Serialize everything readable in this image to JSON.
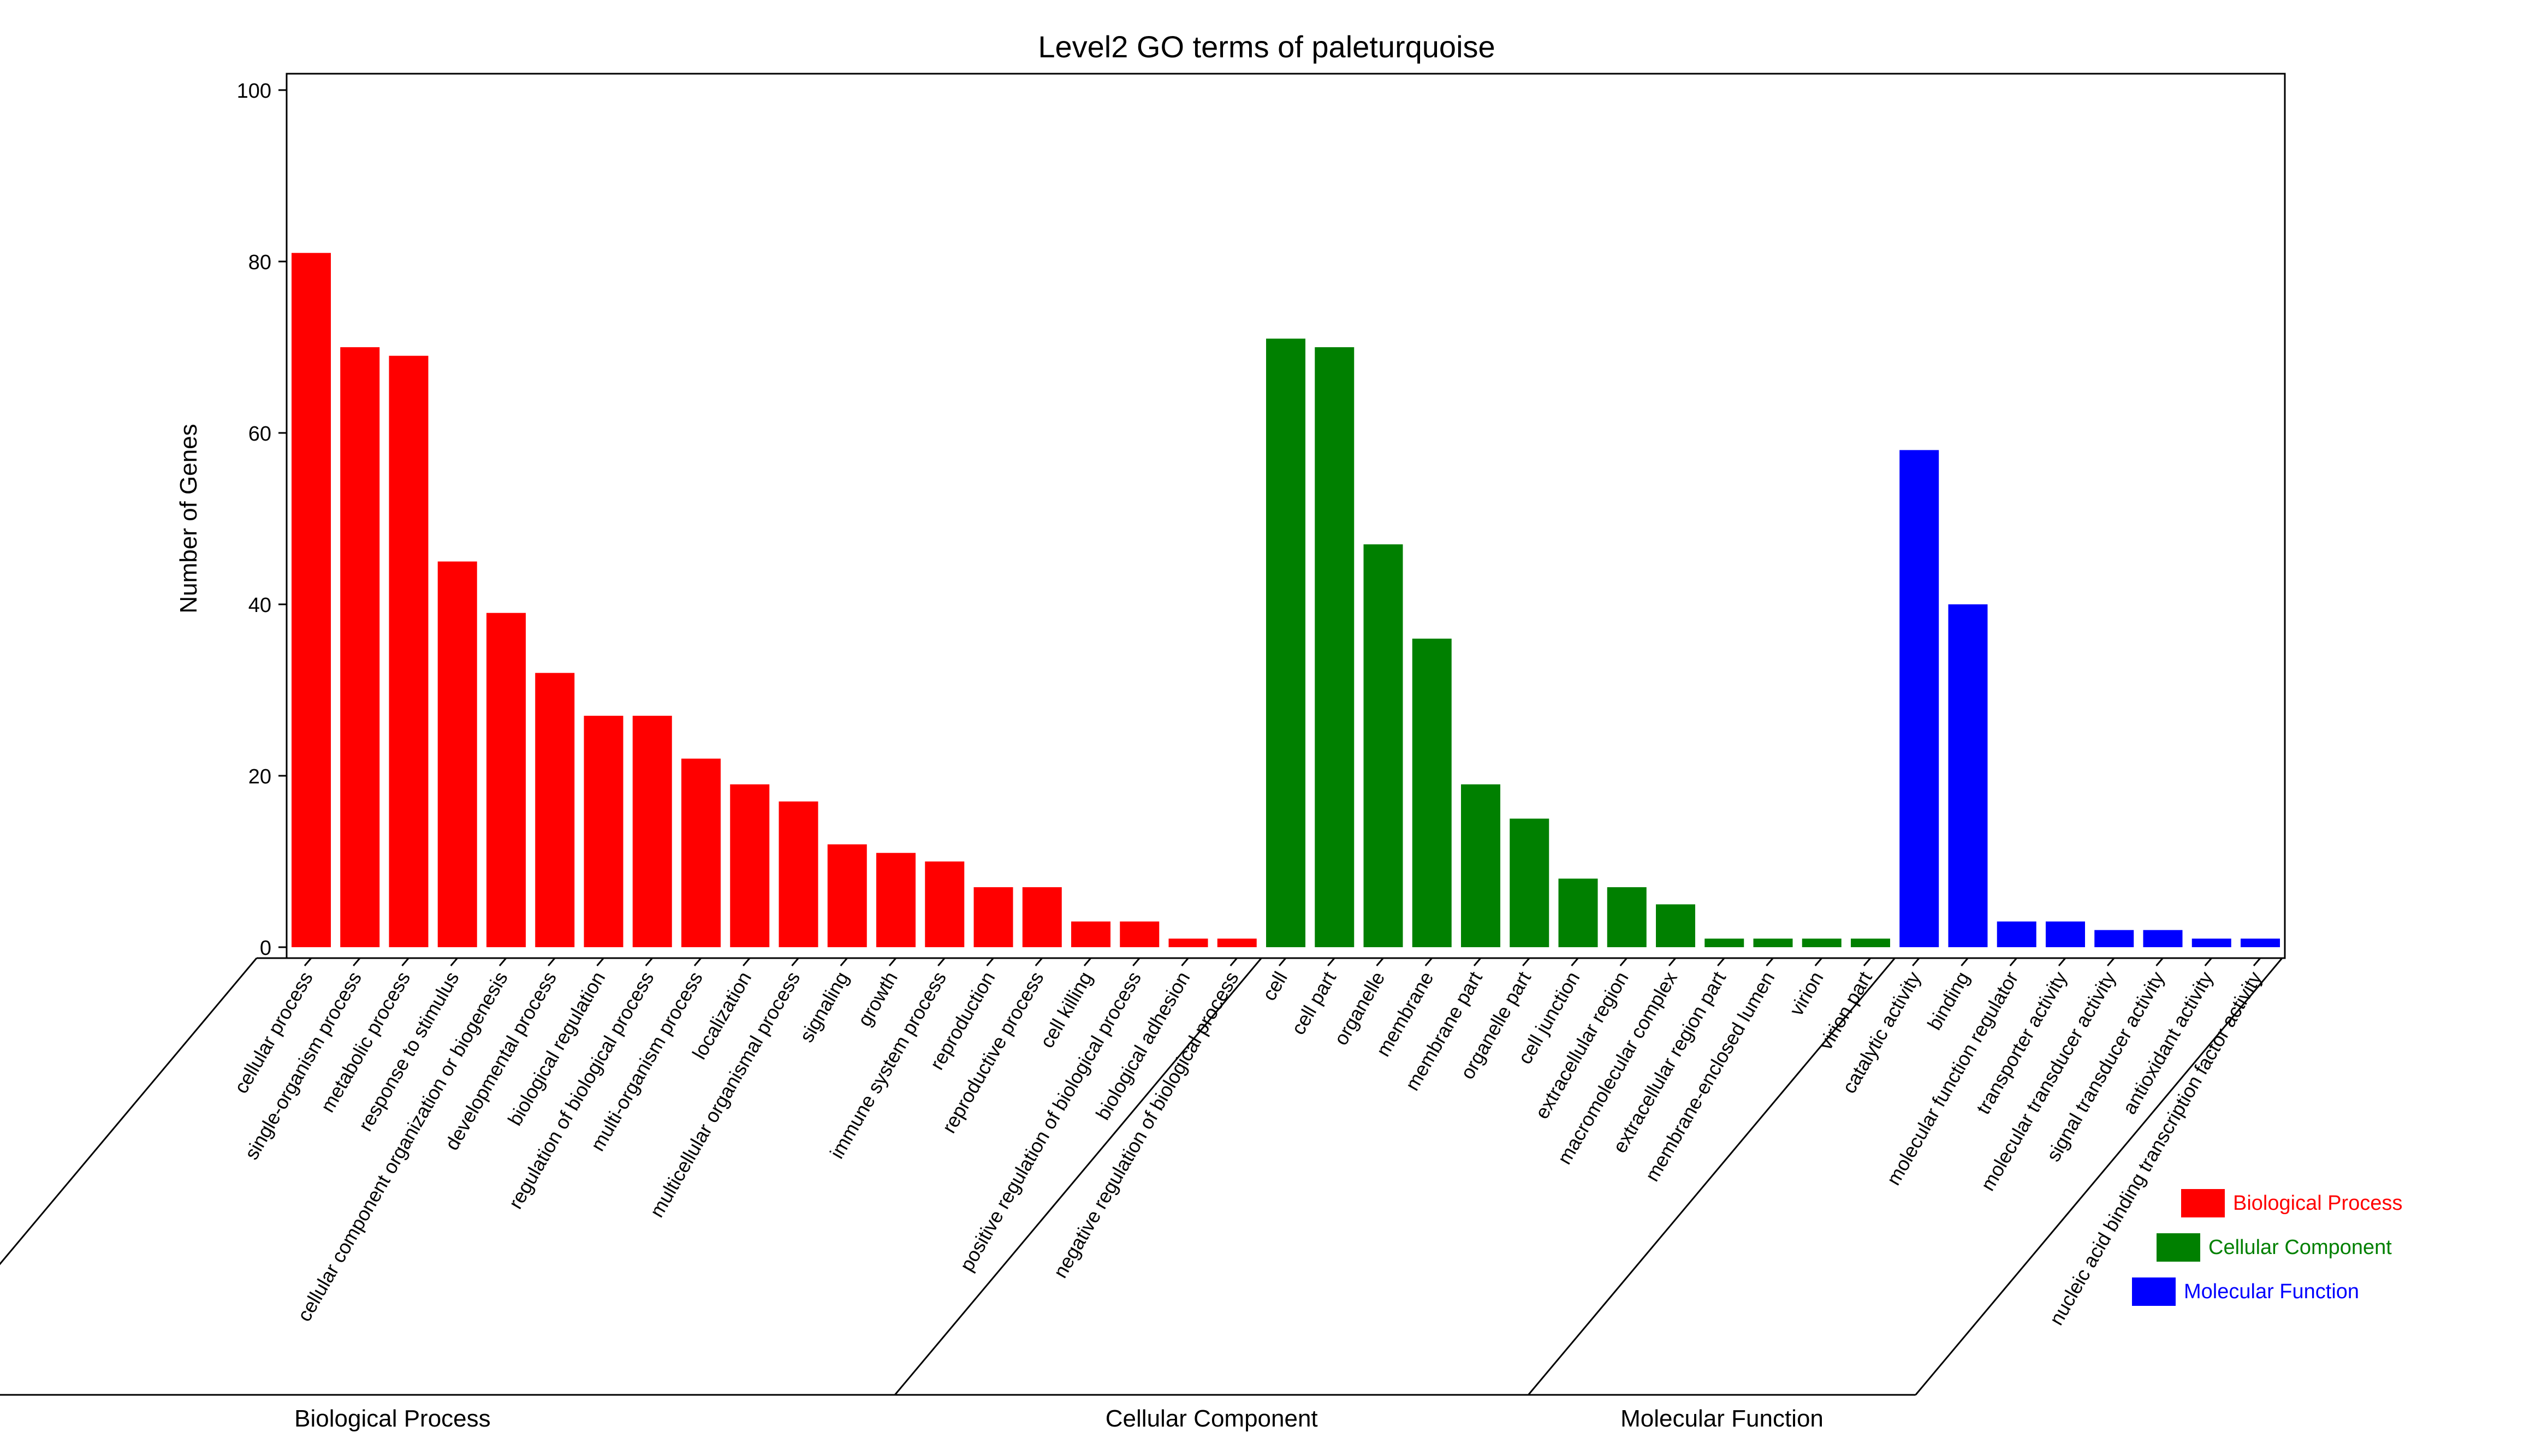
{
  "chart_data": {
    "type": "bar",
    "title": "Level2 GO terms of paleturquoise",
    "xlabel": "",
    "ylabel": "Number of Genes",
    "ylim": [
      0,
      100
    ],
    "yticks": [
      0,
      20,
      40,
      60,
      80,
      100
    ],
    "grid": false,
    "legend_position": "bottom-right",
    "categories": [
      "cellular process",
      "single-organism process",
      "metabolic process",
      "response to stimulus",
      "cellular component organization or biogenesis",
      "developmental process",
      "biological regulation",
      "regulation of biological process",
      "multi-organism process",
      "localization",
      "multicellular organismal process",
      "signaling",
      "growth",
      "immune system process",
      "reproduction",
      "reproductive process",
      "cell killing",
      "positive regulation of biological process",
      "biological adhesion",
      "negative regulation of biological process",
      "cell",
      "cell part",
      "organelle",
      "membrane",
      "membrane part",
      "organelle part",
      "cell junction",
      "extracellular region",
      "macromolecular complex",
      "extracellular region part",
      "membrane-enclosed lumen",
      "virion",
      "virion part",
      "catalytic activity",
      "binding",
      "molecular function regulator",
      "transporter activity",
      "molecular transducer activity",
      "signal transducer activity",
      "antioxidant activity",
      "nucleic acid binding transcription factor activity"
    ],
    "values": [
      81,
      70,
      69,
      45,
      39,
      32,
      27,
      27,
      22,
      19,
      17,
      12,
      11,
      10,
      7,
      7,
      3,
      3,
      1,
      1,
      71,
      70,
      47,
      36,
      19,
      15,
      8,
      7,
      5,
      1,
      1,
      1,
      1,
      58,
      40,
      3,
      3,
      2,
      2,
      1,
      1
    ],
    "groups": [
      {
        "name": "Biological Process",
        "color": "#ff0000",
        "start": 0,
        "count": 20
      },
      {
        "name": "Cellular Component",
        "color": "#008000",
        "start": 20,
        "count": 13
      },
      {
        "name": "Molecular Function",
        "color": "#0000ff",
        "start": 33,
        "count": 8
      }
    ]
  }
}
